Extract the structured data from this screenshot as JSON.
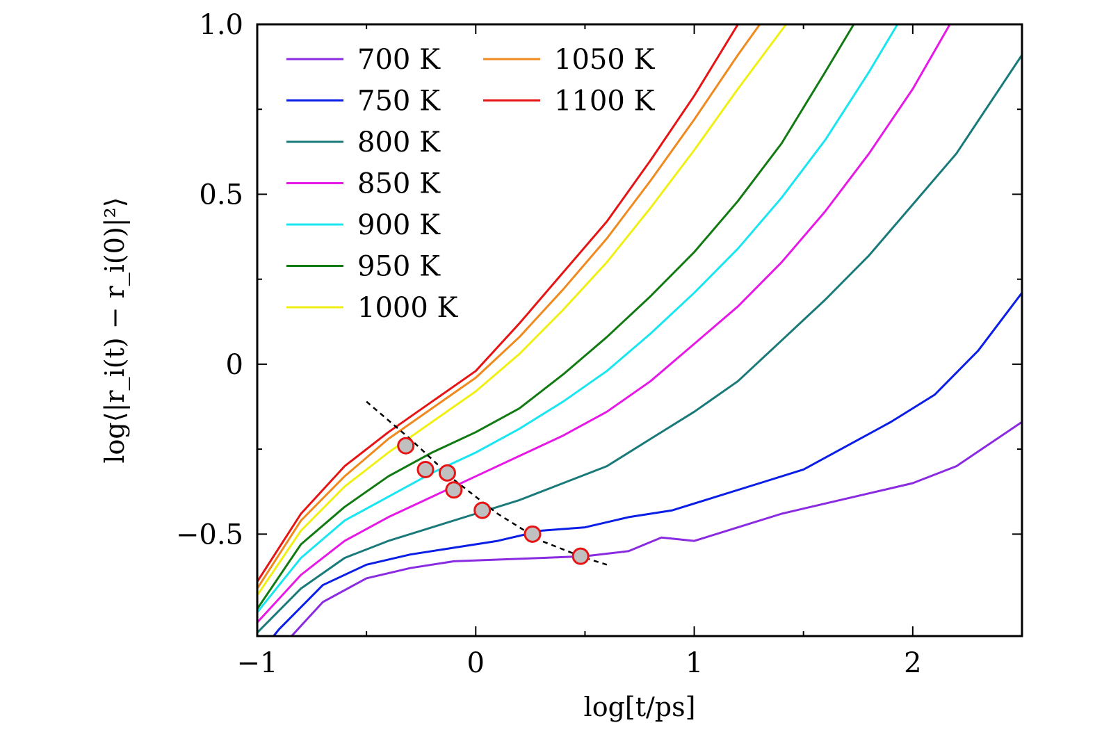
{
  "chart_data": {
    "type": "line",
    "title": "",
    "xlabel": "log[t/ps]",
    "ylabel": "log⟨|r_i(t) − r_i(0)|²⟩",
    "xlim": [
      -1,
      2.5
    ],
    "ylim": [
      -0.8,
      1.0
    ],
    "xticks": [
      -1,
      0,
      1,
      2
    ],
    "xtick_labels": [
      "−1",
      "0",
      "1",
      "2"
    ],
    "yticks": [
      -0.5,
      0,
      0.5,
      1.0
    ],
    "ytick_labels": [
      "−0.5",
      "0",
      "0.5",
      "1.0"
    ],
    "grid": false,
    "legend_position": "top-left",
    "series": [
      {
        "name": "700 K",
        "color": "#8a2be2",
        "x": [
          -1.0,
          -0.9,
          -0.7,
          -0.5,
          -0.3,
          -0.1,
          0.1,
          0.3,
          0.5,
          0.7,
          0.85,
          1.0,
          1.2,
          1.4,
          1.6,
          1.8,
          2.0,
          2.2,
          2.5
        ],
        "y": [
          -0.92,
          -0.84,
          -0.7,
          -0.63,
          -0.6,
          -0.58,
          -0.575,
          -0.57,
          -0.565,
          -0.55,
          -0.51,
          -0.52,
          -0.48,
          -0.44,
          -0.41,
          -0.38,
          -0.35,
          -0.3,
          -0.17
        ]
      },
      {
        "name": "750 K",
        "color": "#0a1ee6",
        "x": [
          -1.0,
          -0.9,
          -0.7,
          -0.5,
          -0.3,
          -0.1,
          0.1,
          0.3,
          0.5,
          0.7,
          0.9,
          1.1,
          1.3,
          1.5,
          1.7,
          1.9,
          2.1,
          2.3,
          2.5
        ],
        "y": [
          -0.86,
          -0.78,
          -0.65,
          -0.59,
          -0.56,
          -0.54,
          -0.52,
          -0.49,
          -0.48,
          -0.45,
          -0.43,
          -0.39,
          -0.35,
          -0.31,
          -0.24,
          -0.17,
          -0.09,
          0.04,
          0.21
        ]
      },
      {
        "name": "800 K",
        "color": "#1a7a7a",
        "x": [
          -1.0,
          -0.8,
          -0.6,
          -0.4,
          -0.2,
          0.0,
          0.2,
          0.4,
          0.6,
          0.8,
          1.0,
          1.2,
          1.4,
          1.6,
          1.8,
          2.0,
          2.2,
          2.5
        ],
        "y": [
          -0.79,
          -0.66,
          -0.57,
          -0.52,
          -0.48,
          -0.44,
          -0.4,
          -0.35,
          -0.3,
          -0.22,
          -0.14,
          -0.05,
          0.07,
          0.19,
          0.32,
          0.47,
          0.62,
          0.91
        ]
      },
      {
        "name": "850 K",
        "color": "#e619e6",
        "x": [
          -1.0,
          -0.8,
          -0.6,
          -0.4,
          -0.2,
          0.0,
          0.2,
          0.4,
          0.6,
          0.8,
          1.0,
          1.2,
          1.4,
          1.6,
          1.8,
          2.0,
          2.17
        ],
        "y": [
          -0.76,
          -0.62,
          -0.52,
          -0.45,
          -0.39,
          -0.33,
          -0.27,
          -0.21,
          -0.14,
          -0.05,
          0.06,
          0.17,
          0.3,
          0.45,
          0.62,
          0.81,
          1.0
        ]
      },
      {
        "name": "900 K",
        "color": "#19e6f0",
        "x": [
          -1.0,
          -0.8,
          -0.6,
          -0.4,
          -0.2,
          0.0,
          0.2,
          0.4,
          0.6,
          0.8,
          1.0,
          1.2,
          1.4,
          1.6,
          1.8,
          1.93
        ],
        "y": [
          -0.73,
          -0.57,
          -0.46,
          -0.39,
          -0.32,
          -0.26,
          -0.19,
          -0.11,
          -0.02,
          0.09,
          0.21,
          0.34,
          0.49,
          0.66,
          0.86,
          1.0
        ]
      },
      {
        "name": "950 K",
        "color": "#127a12",
        "x": [
          -1.0,
          -0.8,
          -0.6,
          -0.4,
          -0.2,
          0.0,
          0.2,
          0.4,
          0.6,
          0.8,
          1.0,
          1.2,
          1.4,
          1.6,
          1.73
        ],
        "y": [
          -0.72,
          -0.53,
          -0.42,
          -0.33,
          -0.26,
          -0.2,
          -0.13,
          -0.03,
          0.08,
          0.2,
          0.33,
          0.48,
          0.65,
          0.86,
          1.0
        ]
      },
      {
        "name": "1000 K",
        "color": "#f0f014",
        "x": [
          -1.0,
          -0.8,
          -0.6,
          -0.4,
          -0.2,
          0.0,
          0.2,
          0.4,
          0.6,
          0.8,
          1.0,
          1.2,
          1.42
        ],
        "y": [
          -0.68,
          -0.49,
          -0.36,
          -0.26,
          -0.17,
          -0.08,
          0.03,
          0.16,
          0.3,
          0.46,
          0.63,
          0.81,
          1.0
        ]
      },
      {
        "name": "1050 K",
        "color": "#f08a1e",
        "x": [
          -1.0,
          -0.8,
          -0.6,
          -0.4,
          -0.2,
          0.0,
          0.2,
          0.4,
          0.6,
          0.8,
          1.0,
          1.2,
          1.3
        ],
        "y": [
          -0.66,
          -0.46,
          -0.33,
          -0.22,
          -0.13,
          -0.04,
          0.08,
          0.22,
          0.37,
          0.54,
          0.72,
          0.91,
          1.0
        ]
      },
      {
        "name": "1100 K",
        "color": "#e61414",
        "x": [
          -1.0,
          -0.8,
          -0.6,
          -0.4,
          -0.2,
          0.0,
          0.2,
          0.4,
          0.6,
          0.8,
          1.0,
          1.2
        ],
        "y": [
          -0.64,
          -0.44,
          -0.3,
          -0.2,
          -0.11,
          -0.02,
          0.12,
          0.27,
          0.42,
          0.6,
          0.79,
          1.0
        ]
      }
    ],
    "guide_line": {
      "style": "dashed",
      "color": "#000000",
      "x": [
        -0.5,
        -0.3,
        -0.1,
        0.1,
        0.3,
        0.5,
        0.6
      ],
      "y": [
        -0.11,
        -0.22,
        -0.34,
        -0.44,
        -0.52,
        -0.57,
        -0.59
      ]
    },
    "markers": {
      "fill": "#c0c0c0",
      "edge": "#e61414",
      "points": [
        {
          "x": -0.32,
          "y": -0.24
        },
        {
          "x": -0.23,
          "y": -0.31
        },
        {
          "x": -0.13,
          "y": -0.32
        },
        {
          "x": -0.1,
          "y": -0.37
        },
        {
          "x": 0.03,
          "y": -0.43
        },
        {
          "x": 0.26,
          "y": -0.5
        },
        {
          "x": 0.48,
          "y": -0.565
        }
      ]
    }
  }
}
